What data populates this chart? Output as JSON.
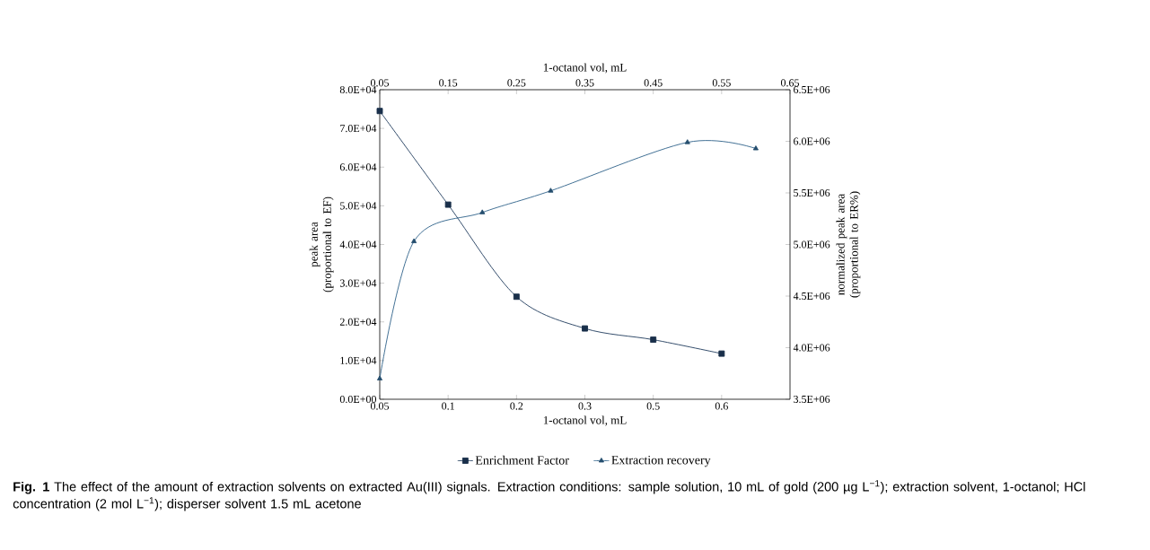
{
  "chart_data": {
    "type": "line",
    "xlabel": "1-octanol vol, mL",
    "x2label": "1-octanol vol, mL",
    "ylabel": "peak area (proportional to EF)",
    "y2label": "normalized peak area (proportional to ER%)",
    "xlim": [
      0.05,
      0.65
    ],
    "xticks": [
      {
        "value": 0.05,
        "label": "0.05"
      },
      {
        "value": 0.15,
        "label": "0.1"
      },
      {
        "value": 0.25,
        "label": "0.2"
      },
      {
        "value": 0.35,
        "label": "0.3"
      },
      {
        "value": 0.45,
        "label": "0.5"
      },
      {
        "value": 0.55,
        "label": "0.6"
      }
    ],
    "x2lim": [
      0.05,
      0.65
    ],
    "x2ticks": [
      0.05,
      0.15,
      0.25,
      0.35,
      0.45,
      0.55,
      0.65
    ],
    "ylim": [
      0,
      80000
    ],
    "yticks": [
      {
        "value": 0,
        "label": "0.0E+00"
      },
      {
        "value": 10000,
        "label": "1.0E+04"
      },
      {
        "value": 20000,
        "label": "2.0E+04"
      },
      {
        "value": 30000,
        "label": "3.0E+04"
      },
      {
        "value": 40000,
        "label": "4.0E+04"
      },
      {
        "value": 50000,
        "label": "5.0E+04"
      },
      {
        "value": 60000,
        "label": "6.0E+04"
      },
      {
        "value": 70000,
        "label": "7.0E+04"
      },
      {
        "value": 80000,
        "label": "8.0E+04"
      }
    ],
    "y2lim": [
      3500000,
      6500000
    ],
    "y2ticks": [
      {
        "value": 3500000,
        "label": "3.5E+06"
      },
      {
        "value": 4000000,
        "label": "4.0E+06"
      },
      {
        "value": 4500000,
        "label": "4.5E+06"
      },
      {
        "value": 5000000,
        "label": "5.0E+06"
      },
      {
        "value": 5500000,
        "label": "5.5E+06"
      },
      {
        "value": 6000000,
        "label": "6.0E+06"
      },
      {
        "value": 6500000,
        "label": "6.5E+06"
      }
    ],
    "series": [
      {
        "name": "Enrichment Factor",
        "color": "#1f3b5c",
        "marker": "square",
        "x": [
          0.05,
          0.15,
          0.25,
          0.35,
          0.45,
          0.55
        ],
        "values": [
          74500,
          50300,
          26500,
          18300,
          15400,
          11800
        ]
      },
      {
        "name": "Extraction recovery",
        "color": "#2e6189",
        "marker": "triangle",
        "axis": "y2",
        "x": [
          0.05,
          0.1,
          0.2,
          0.3,
          0.5,
          0.6
        ],
        "values": [
          3700000,
          5030000,
          5310000,
          5520000,
          5990000,
          5930000
        ]
      }
    ],
    "legend": "bottom",
    "annotations": [
      "**Fig. 1** The effect of the amount of extraction solvents on extracted Au(III) signals. Extraction conditions: sample solution, 10 mL of gold (200 µg L$^{−1}$); extraction solvent, 1-octanol; HCl concentration (2 mol L$^{−1}$); disperser solvent 1.5 mL acetone"
    ]
  }
}
